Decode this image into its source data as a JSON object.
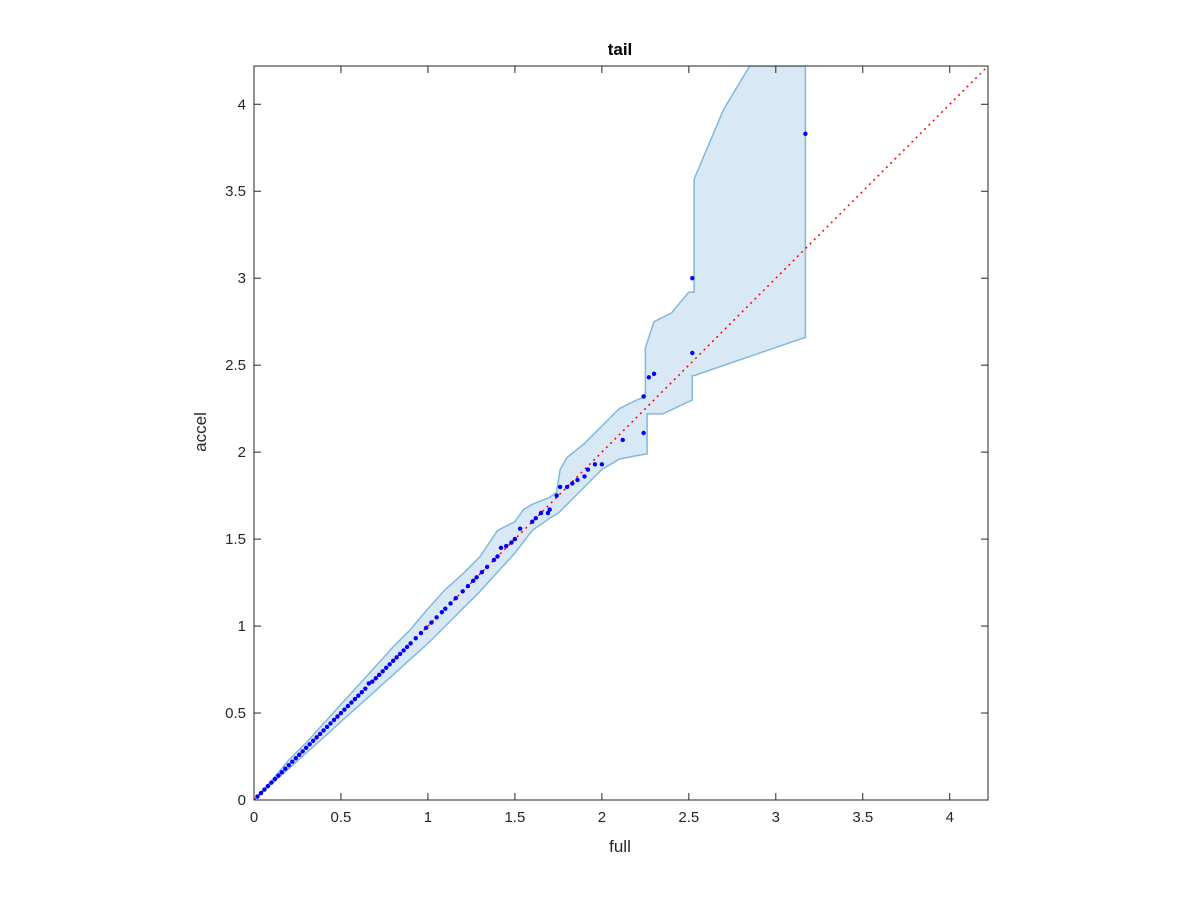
{
  "chart_data": {
    "type": "scatter",
    "title": "tail",
    "xlabel": "full",
    "ylabel": "accel",
    "xlim": [
      0,
      4.22
    ],
    "ylim": [
      0,
      4.22
    ],
    "xticks": [
      "0",
      "0.5",
      "1",
      "1.5",
      "2",
      "2.5",
      "3",
      "3.5",
      "4"
    ],
    "yticks": [
      "0",
      "0.5",
      "1",
      "1.5",
      "2",
      "2.5",
      "3",
      "3.5",
      "4"
    ],
    "grid": false,
    "legend": "none",
    "reference_line": {
      "style": "dotted",
      "color": "#ff0000",
      "from": [
        0,
        0
      ],
      "to": [
        4.22,
        4.22
      ]
    },
    "band": {
      "color": "#d9e8f5",
      "edge_color": "#7fb9dc",
      "upper": [
        [
          0,
          0
        ],
        [
          0.1,
          0.11
        ],
        [
          0.2,
          0.23
        ],
        [
          0.3,
          0.33
        ],
        [
          0.4,
          0.44
        ],
        [
          0.5,
          0.55
        ],
        [
          0.6,
          0.66
        ],
        [
          0.7,
          0.77
        ],
        [
          0.8,
          0.88
        ],
        [
          0.9,
          0.98
        ],
        [
          1.0,
          1.1
        ],
        [
          1.1,
          1.21
        ],
        [
          1.2,
          1.3
        ],
        [
          1.3,
          1.4
        ],
        [
          1.4,
          1.55
        ],
        [
          1.5,
          1.6
        ],
        [
          1.55,
          1.67
        ],
        [
          1.6,
          1.7
        ],
        [
          1.65,
          1.72
        ],
        [
          1.7,
          1.74
        ],
        [
          1.74,
          1.77
        ],
        [
          1.76,
          1.9
        ],
        [
          1.8,
          1.97
        ],
        [
          1.9,
          2.05
        ],
        [
          1.95,
          2.1
        ],
        [
          2.0,
          2.15
        ],
        [
          2.1,
          2.25
        ],
        [
          2.2,
          2.3
        ],
        [
          2.25,
          2.32
        ],
        [
          2.25,
          2.6
        ],
        [
          2.3,
          2.75
        ],
        [
          2.4,
          2.8
        ],
        [
          2.5,
          2.92
        ],
        [
          2.53,
          2.92
        ],
        [
          2.53,
          3.57
        ],
        [
          2.7,
          3.97
        ],
        [
          2.85,
          4.22
        ],
        [
          3.17,
          4.22
        ]
      ],
      "lower": [
        [
          3.17,
          2.66
        ],
        [
          2.53,
          2.44
        ],
        [
          2.52,
          2.44
        ],
        [
          2.52,
          2.3
        ],
        [
          2.35,
          2.22
        ],
        [
          2.26,
          2.22
        ],
        [
          2.26,
          1.99
        ],
        [
          2.2,
          1.98
        ],
        [
          2.1,
          1.96
        ],
        [
          2.0,
          1.9
        ],
        [
          1.9,
          1.8
        ],
        [
          1.8,
          1.7
        ],
        [
          1.75,
          1.65
        ],
        [
          1.7,
          1.62
        ],
        [
          1.6,
          1.55
        ],
        [
          1.5,
          1.42
        ],
        [
          1.4,
          1.31
        ],
        [
          1.3,
          1.2
        ],
        [
          1.2,
          1.1
        ],
        [
          1.1,
          1.0
        ],
        [
          1.0,
          0.9
        ],
        [
          0.9,
          0.81
        ],
        [
          0.8,
          0.72
        ],
        [
          0.7,
          0.63
        ],
        [
          0.6,
          0.54
        ],
        [
          0.5,
          0.45
        ],
        [
          0.4,
          0.36
        ],
        [
          0.3,
          0.27
        ],
        [
          0.2,
          0.18
        ],
        [
          0.1,
          0.09
        ],
        [
          0,
          0
        ]
      ]
    },
    "series": [
      {
        "color": "#0000ff",
        "points": [
          [
            0.02,
            0.02
          ],
          [
            0.04,
            0.04
          ],
          [
            0.06,
            0.06
          ],
          [
            0.08,
            0.08
          ],
          [
            0.1,
            0.1
          ],
          [
            0.12,
            0.12
          ],
          [
            0.14,
            0.14
          ],
          [
            0.16,
            0.16
          ],
          [
            0.18,
            0.18
          ],
          [
            0.2,
            0.2
          ],
          [
            0.22,
            0.22
          ],
          [
            0.24,
            0.24
          ],
          [
            0.26,
            0.26
          ],
          [
            0.28,
            0.28
          ],
          [
            0.3,
            0.3
          ],
          [
            0.32,
            0.32
          ],
          [
            0.34,
            0.34
          ],
          [
            0.36,
            0.36
          ],
          [
            0.38,
            0.38
          ],
          [
            0.4,
            0.4
          ],
          [
            0.42,
            0.42
          ],
          [
            0.44,
            0.44
          ],
          [
            0.46,
            0.46
          ],
          [
            0.48,
            0.48
          ],
          [
            0.5,
            0.5
          ],
          [
            0.52,
            0.52
          ],
          [
            0.54,
            0.54
          ],
          [
            0.56,
            0.56
          ],
          [
            0.58,
            0.58
          ],
          [
            0.6,
            0.6
          ],
          [
            0.62,
            0.62
          ],
          [
            0.64,
            0.64
          ],
          [
            0.66,
            0.67
          ],
          [
            0.68,
            0.68
          ],
          [
            0.7,
            0.7
          ],
          [
            0.72,
            0.72
          ],
          [
            0.74,
            0.74
          ],
          [
            0.76,
            0.76
          ],
          [
            0.78,
            0.78
          ],
          [
            0.8,
            0.8
          ],
          [
            0.82,
            0.82
          ],
          [
            0.84,
            0.84
          ],
          [
            0.86,
            0.86
          ],
          [
            0.88,
            0.88
          ],
          [
            0.9,
            0.9
          ],
          [
            0.93,
            0.93
          ],
          [
            0.96,
            0.96
          ],
          [
            0.99,
            0.99
          ],
          [
            1.02,
            1.02
          ],
          [
            1.05,
            1.05
          ],
          [
            1.08,
            1.08
          ],
          [
            1.1,
            1.1
          ],
          [
            1.13,
            1.13
          ],
          [
            1.16,
            1.16
          ],
          [
            1.2,
            1.2
          ],
          [
            1.23,
            1.23
          ],
          [
            1.26,
            1.26
          ],
          [
            1.28,
            1.28
          ],
          [
            1.31,
            1.31
          ],
          [
            1.34,
            1.34
          ],
          [
            1.38,
            1.38
          ],
          [
            1.4,
            1.4
          ],
          [
            1.42,
            1.45
          ],
          [
            1.45,
            1.46
          ],
          [
            1.48,
            1.48
          ],
          [
            1.5,
            1.5
          ],
          [
            1.53,
            1.56
          ],
          [
            1.6,
            1.6
          ],
          [
            1.62,
            1.62
          ],
          [
            1.65,
            1.65
          ],
          [
            1.69,
            1.65
          ],
          [
            1.7,
            1.67
          ],
          [
            1.74,
            1.75
          ],
          [
            1.76,
            1.8
          ],
          [
            1.8,
            1.8
          ],
          [
            1.83,
            1.82
          ],
          [
            1.86,
            1.84
          ],
          [
            1.9,
            1.86
          ],
          [
            1.92,
            1.9
          ],
          [
            1.96,
            1.93
          ],
          [
            2.0,
            1.93
          ],
          [
            2.12,
            2.07
          ],
          [
            2.24,
            2.32
          ],
          [
            2.24,
            2.11
          ],
          [
            2.27,
            2.43
          ],
          [
            2.3,
            2.45
          ],
          [
            2.52,
            3.0
          ],
          [
            2.52,
            2.57
          ],
          [
            3.17,
            3.83
          ]
        ]
      }
    ]
  }
}
